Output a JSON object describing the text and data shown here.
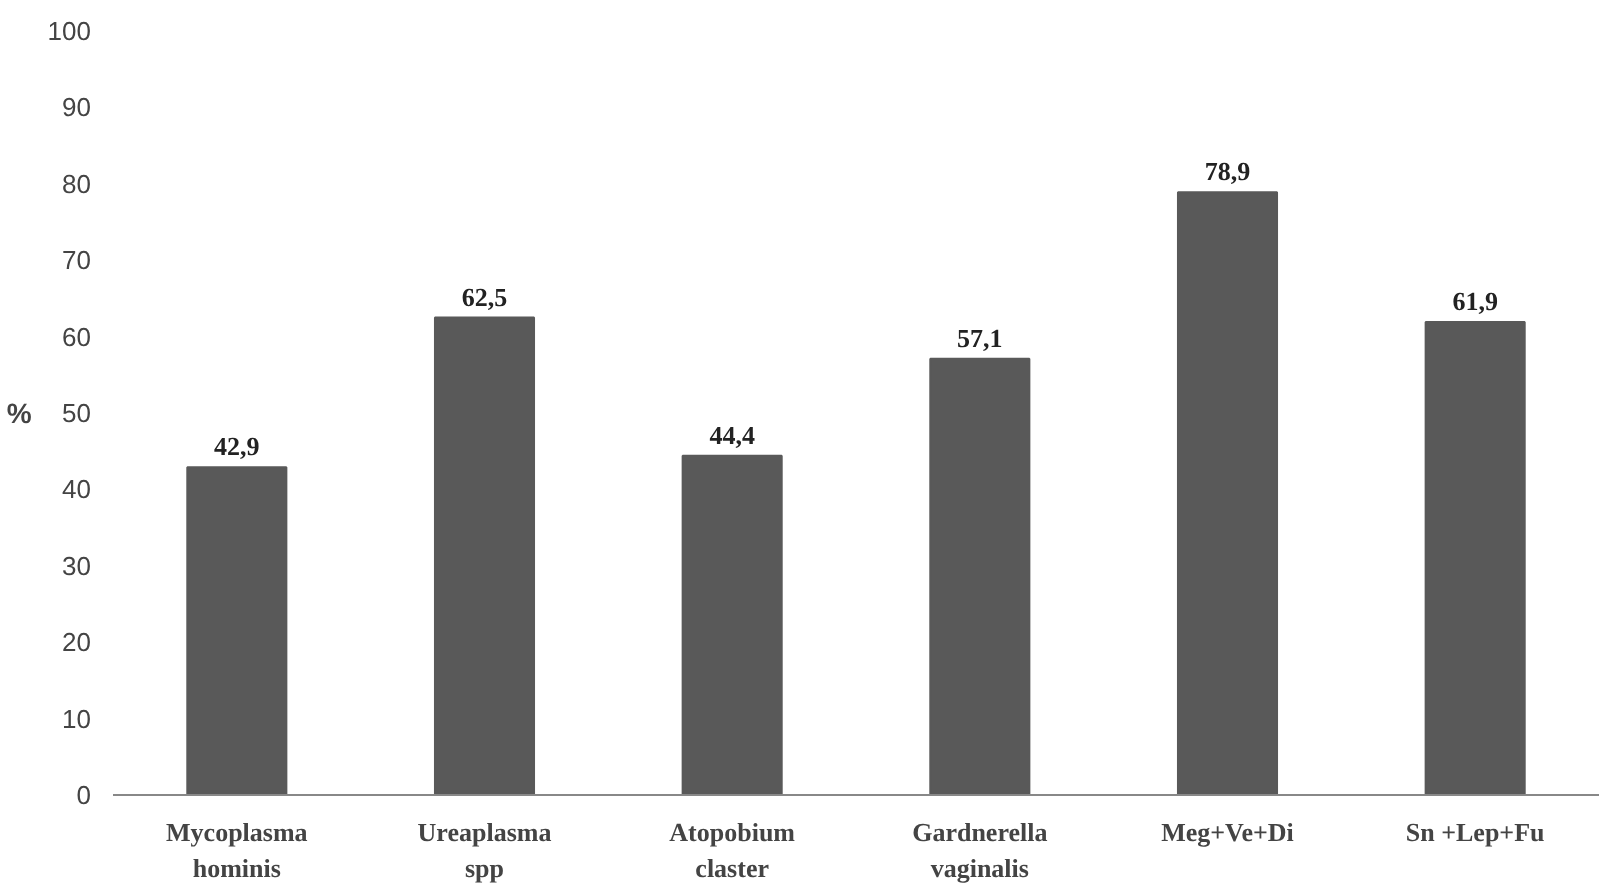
{
  "chart_data": {
    "type": "bar",
    "ylabel": "%",
    "categories": [
      "Mycoplasma\nhominis",
      "Ureaplasma\nspp",
      "Atopobium\nclaster",
      "Gardnerella\nvaginalis",
      "Meg+Ve+Di",
      "Sn +Lep+Fu"
    ],
    "values": [
      42.9,
      62.5,
      44.4,
      57.1,
      78.9,
      61.9
    ],
    "value_labels": [
      "42,9",
      "62,5",
      "44,4",
      "57,1",
      "78,9",
      "61,9"
    ],
    "color": "#595959",
    "ylim": [
      0,
      100
    ],
    "yticks": [
      0,
      10,
      20,
      30,
      40,
      50,
      60,
      70,
      80,
      90,
      100
    ],
    "grid": false
  }
}
